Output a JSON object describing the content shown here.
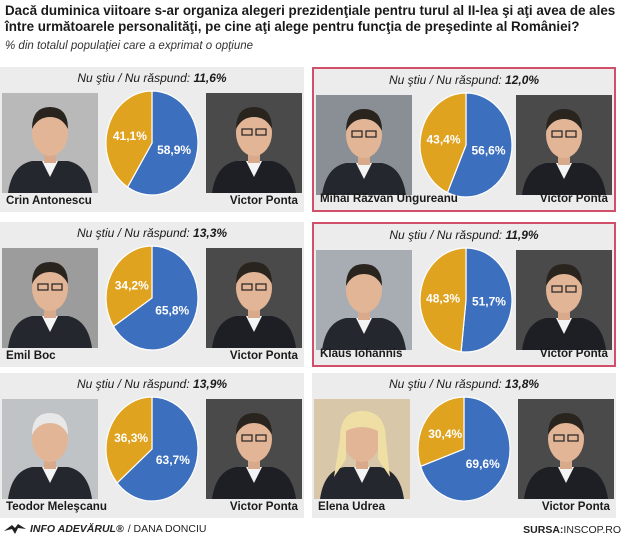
{
  "title": "Dacă duminica viitoare s-ar organiza alegeri prezidenţiale pentru turul al II-lea şi aţi avea de ales între următoarele personalităţi, pe cine aţi alege pentru funcţia de preşedinte al României?",
  "subtitle": "% din totalul populaţiei care a exprimat o opţiune",
  "colors": {
    "challenger": "#e0a320",
    "ponta": "#3c6fbe",
    "highlight_border": "#d24f6a",
    "panel_bg": "#ececec"
  },
  "chart_data": [
    {
      "type": "pie",
      "no_answer_label": "Nu ştiu / Nu răspund:",
      "no_answer_value": "11,6%",
      "labels": [
        "Crin Antonescu",
        "Victor Ponta"
      ],
      "values": [
        41.1,
        58.9
      ],
      "value_labels": [
        "41,1%",
        "58,9%"
      ],
      "highlighted": false
    },
    {
      "type": "pie",
      "no_answer_label": "Nu ştiu / Nu răspund:",
      "no_answer_value": "12,0%",
      "labels": [
        "Mihai Răzvan Ungureanu",
        "Victor Ponta"
      ],
      "values": [
        43.4,
        56.6
      ],
      "value_labels": [
        "43,4%",
        "56,6%"
      ],
      "highlighted": true
    },
    {
      "type": "pie",
      "no_answer_label": "Nu ştiu / Nu răspund:",
      "no_answer_value": "13,3%",
      "labels": [
        "Emil Boc",
        "Victor Ponta"
      ],
      "values": [
        34.2,
        65.8
      ],
      "value_labels": [
        "34,2%",
        "65,8%"
      ],
      "highlighted": false
    },
    {
      "type": "pie",
      "no_answer_label": "Nu ştiu / Nu răspund:",
      "no_answer_value": "11,9%",
      "labels": [
        "Klaus Iohannis",
        "Victor Ponta"
      ],
      "values": [
        48.3,
        51.7
      ],
      "value_labels": [
        "48,3%",
        "51,7%"
      ],
      "highlighted": true
    },
    {
      "type": "pie",
      "no_answer_label": "Nu ştiu / Nu răspund:",
      "no_answer_value": "13,9%",
      "labels": [
        "Teodor Meleşcanu",
        "Victor Ponta"
      ],
      "values": [
        36.3,
        63.7
      ],
      "value_labels": [
        "36,3%",
        "63,7%"
      ],
      "highlighted": false
    },
    {
      "type": "pie",
      "no_answer_label": "Nu ştiu / Nu răspund:",
      "no_answer_value": "13,8%",
      "labels": [
        "Elena Udrea",
        "Victor Ponta"
      ],
      "values": [
        30.4,
        69.6
      ],
      "value_labels": [
        "30,4%",
        "69,6%"
      ],
      "highlighted": false
    }
  ],
  "footer": {
    "brand": "INFO ADEVĂRUL®",
    "author": "/ DANA DONCIU",
    "source_label": "SURSA:",
    "source_value": "INSCOP.RO",
    "logo_icon": "eagle-logo-icon"
  }
}
